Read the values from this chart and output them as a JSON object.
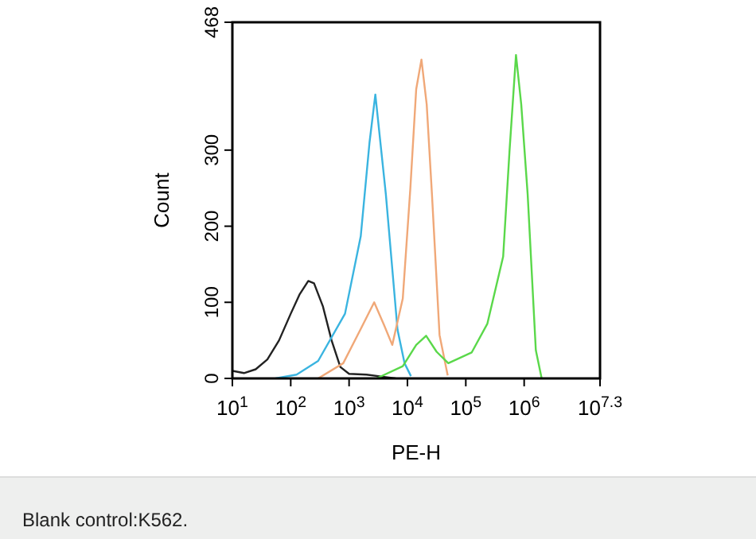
{
  "chart_data": {
    "type": "line",
    "xlabel": "PE-H",
    "ylabel": "Count",
    "log": "x",
    "grid": false,
    "line_style": "solid",
    "xlim": [
      10,
      19952623
    ],
    "xticks": [
      {
        "value": 10,
        "label": "10$^{1}$"
      },
      {
        "value": 100,
        "label": "10$^{2}$"
      },
      {
        "value": 1000,
        "label": "10$^{3}$"
      },
      {
        "value": 10000,
        "label": "10$^{4}$"
      },
      {
        "value": 100000,
        "label": "10$^{5}$"
      },
      {
        "value": 1000000,
        "label": "10$^{6}$"
      },
      {
        "value": 19952623,
        "label": "10$^{7.3}$"
      }
    ],
    "ylim": [
      0,
      468
    ],
    "yticks": [
      0,
      100,
      200,
      300,
      468
    ],
    "annotations": [
      "Blank control:K562."
    ],
    "series": [
      {
        "color": "#222222",
        "x": [
          10,
          15.8,
          25.1,
          39.8,
          63.1,
          100,
          141,
          200,
          251,
          355,
          501,
          708,
          1000,
          1995,
          3981,
          6310
        ],
        "values": [
          10,
          7,
          12,
          25,
          50,
          85,
          110,
          128,
          125,
          95,
          50,
          15,
          6,
          5,
          2,
          0
        ]
      },
      {
        "color": "#3ab4e0",
        "x": [
          55,
          126,
          295,
          851,
          1585,
          2239,
          2818,
          4266,
          6761,
          8913,
          11482
        ],
        "values": [
          0,
          5,
          23,
          85,
          187,
          310,
          373,
          242,
          64,
          20,
          3
        ]
      },
      {
        "color": "#f0a878",
        "x": [
          295,
          794,
          1585,
          2692,
          3981,
          5495,
          8318,
          11220,
          14125,
          17378,
          21380,
          26303,
          35481,
          48978
        ],
        "values": [
          0,
          20,
          65,
          100,
          70,
          44,
          105,
          250,
          380,
          419,
          360,
          242,
          57,
          4
        ]
      },
      {
        "color": "#5ad84a",
        "x": [
          2951,
          8318,
          14125,
          20893,
          31623,
          50119,
          125893,
          234423,
          436516,
          562341,
          724436,
          891251,
          1148154,
          1584893,
          1995262
        ],
        "values": [
          0,
          16,
          44,
          56,
          35,
          20,
          34,
          72,
          160,
          300,
          425,
          360,
          242,
          37,
          0
        ]
      }
    ]
  }
}
